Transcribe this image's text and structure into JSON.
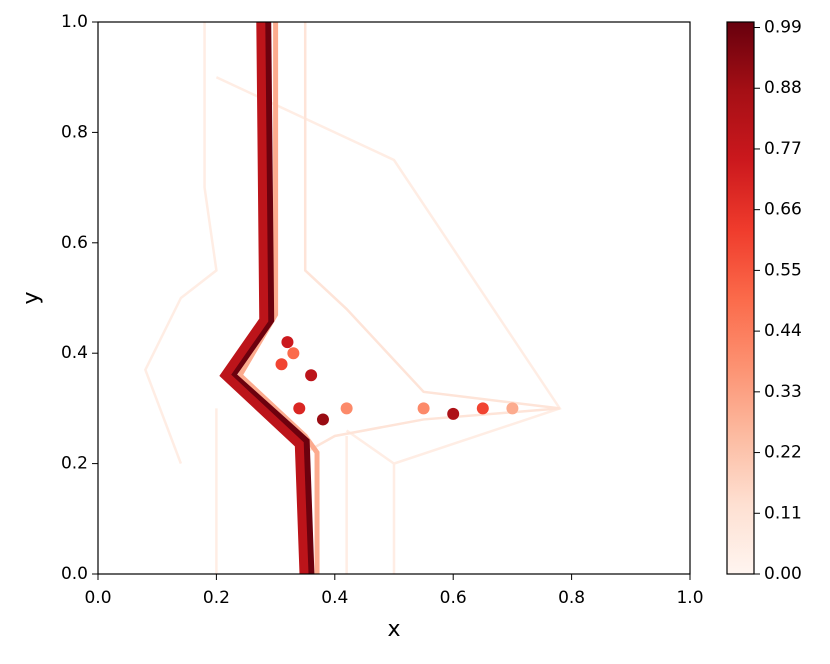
{
  "chart_data": {
    "type": "contour",
    "xlabel": "x",
    "ylabel": "y",
    "xlim": [
      0,
      1
    ],
    "ylim": [
      0,
      1
    ],
    "xticks": [
      {
        "value": 0,
        "label": "0.0"
      },
      0.2,
      0.4,
      0.6,
      0.8,
      {
        "value": 1,
        "label": "1.0"
      }
    ],
    "yticks": [
      {
        "value": 0,
        "label": "0.0"
      },
      0.2,
      0.4,
      0.6,
      0.8,
      {
        "value": 1,
        "label": "1.0"
      }
    ],
    "clim": [
      0,
      1
    ],
    "cticks": [
      {
        "value": 0,
        "label": "0.00"
      },
      {
        "value": 0.11,
        "label": "0.11"
      },
      {
        "value": 0.22,
        "label": "0.22"
      },
      {
        "value": 0.33,
        "label": "0.33"
      },
      {
        "value": 0.44,
        "label": "0.44"
      },
      {
        "value": 0.55,
        "label": "0.55"
      },
      {
        "value": 0.66,
        "label": "0.66"
      },
      {
        "value": 0.77,
        "label": "0.77"
      },
      {
        "value": 0.88,
        "label": "0.88"
      },
      {
        "value": 0.99,
        "label": "0.99"
      }
    ],
    "contours": [
      {
        "level": 0.05,
        "x": [
          0.2,
          0.2
        ],
        "y": [
          0,
          0.3
        ]
      },
      {
        "level": 0.05,
        "x": [
          0.42,
          0.42
        ],
        "y": [
          0,
          0.25
        ]
      },
      {
        "level": 0.05,
        "x": [
          0.5,
          0.5
        ],
        "y": [
          0,
          0.2
        ]
      },
      {
        "level": 0.05,
        "x": [
          0.14,
          0.08,
          0.14,
          0.2,
          0.18,
          0.18
        ],
        "y": [
          0.2,
          0.37,
          0.5,
          0.55,
          0.7,
          1
        ]
      },
      {
        "level": 0.05,
        "x": [
          0.2,
          0.5,
          0.78,
          0.5,
          0.42
        ],
        "y": [
          0.9,
          0.75,
          0.3,
          0.2,
          0.26
        ]
      },
      {
        "level": 0.1,
        "x": [
          0.35,
          0.35,
          0.42,
          0.55,
          0.78,
          0.55,
          0.4,
          0.35,
          0.35
        ],
        "y": [
          1,
          0.55,
          0.48,
          0.33,
          0.3,
          0.28,
          0.25,
          0.22,
          0
        ]
      },
      {
        "level": 0.3,
        "x": [
          0.3,
          0.3,
          0.24,
          0.35,
          0.37,
          0.37
        ],
        "y": [
          1,
          0.47,
          0.36,
          0.25,
          0.22,
          0
        ]
      },
      {
        "level": 0.99,
        "x": [
          0.285,
          0.29,
          0.225,
          0.35,
          0.358
        ],
        "y": [
          1,
          0.46,
          0.36,
          0.24,
          0
        ]
      },
      {
        "level": 0.8,
        "x": [
          0.275,
          0.28,
          0.215,
          0.34,
          0.348
        ],
        "y": [
          1,
          0.46,
          0.36,
          0.235,
          0
        ]
      }
    ],
    "hotspots": {
      "x": [
        0.32,
        0.31,
        0.36,
        0.38,
        0.34,
        0.33,
        0.42,
        0.6,
        0.65,
        0.55,
        0.7
      ],
      "y": [
        0.42,
        0.38,
        0.36,
        0.28,
        0.3,
        0.4,
        0.3,
        0.29,
        0.3,
        0.3,
        0.3
      ],
      "values": [
        0.75,
        0.6,
        0.8,
        0.9,
        0.7,
        0.5,
        0.4,
        0.85,
        0.6,
        0.4,
        0.3
      ]
    }
  }
}
